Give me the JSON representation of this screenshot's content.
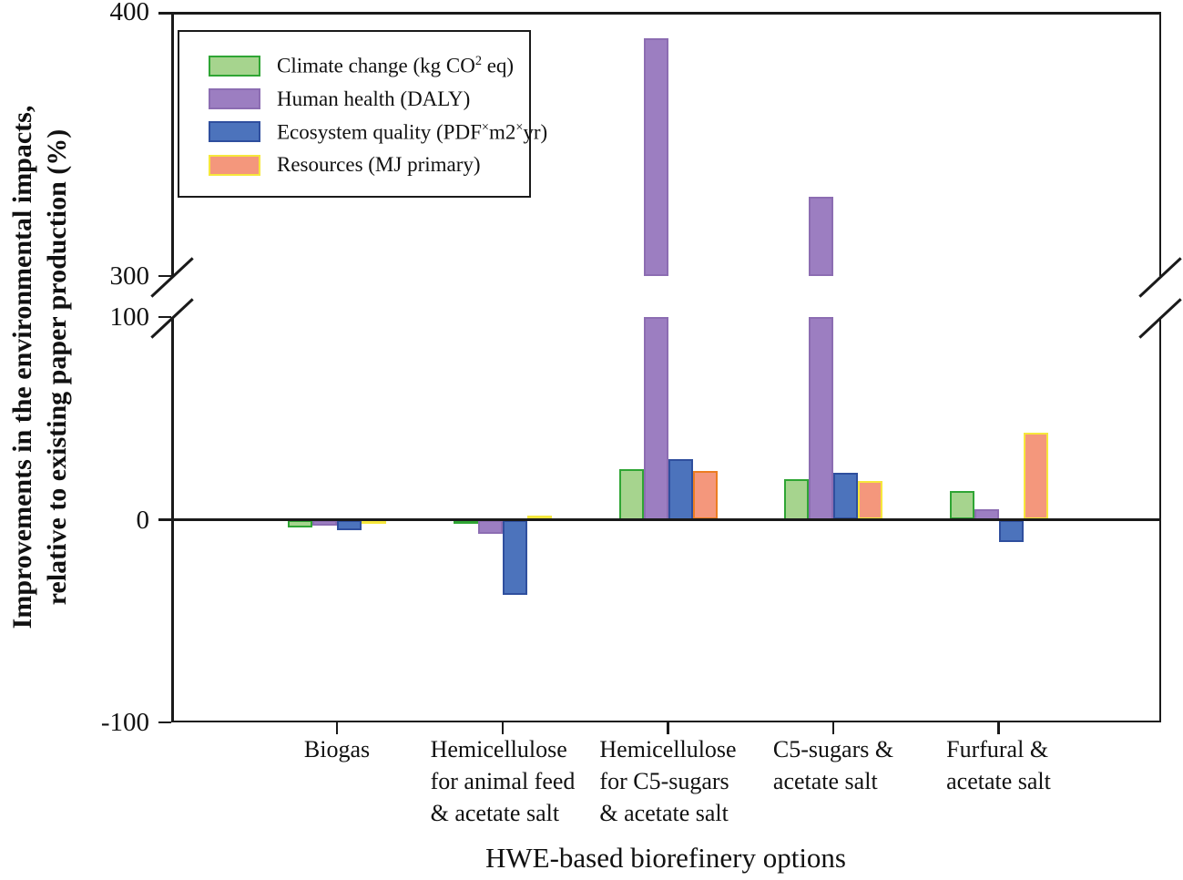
{
  "figure": {
    "y_axis_title_line1": "Improvements in the environmental impacts,",
    "y_axis_title_line2": "relative to existing paper production (%)",
    "x_axis_title": "HWE-based biorefinery options"
  },
  "legend": {
    "items": [
      {
        "key": "climate-change",
        "parts": [
          {
            "t": "Climate change (kg CO"
          },
          {
            "t": "2",
            "sup": true
          },
          {
            "t": " eq)"
          }
        ]
      },
      {
        "key": "human-health",
        "parts": [
          {
            "t": "Human health (DALY)"
          }
        ]
      },
      {
        "key": "ecosystem-quality",
        "parts": [
          {
            "t": "Ecosystem quality (PDF"
          },
          {
            "t": "×",
            "sup": true
          },
          {
            "t": "m2"
          },
          {
            "t": "×",
            "sup": true
          },
          {
            "t": "yr)"
          }
        ]
      },
      {
        "key": "resources",
        "parts": [
          {
            "t": "Resources (MJ primary)"
          }
        ]
      }
    ]
  },
  "chart_data": {
    "type": "bar",
    "title": "",
    "xlabel": "HWE-based biorefinery options",
    "ylabel": "Improvements in the environmental impacts, relative to existing paper production (%)",
    "categories": [
      "Biogas",
      "Hemicellulose for animal feed & acetate salt",
      "Hemicellulose for C5-sugars & acetate salt",
      "C5-sugars & acetate salt",
      "Furfural & acetate salt"
    ],
    "category_label_lines": [
      [
        "Biogas"
      ],
      [
        "Hemicellulose",
        "for animal feed",
        "& acetate salt"
      ],
      [
        "Hemicellulose",
        "for C5-sugars",
        "& acetate salt"
      ],
      [
        "C5-sugars &",
        "acetate salt"
      ],
      [
        "Furfural &",
        "acetate salt"
      ]
    ],
    "series": [
      {
        "name": "Climate change (kg CO2 eq)",
        "values": [
          -4,
          -2,
          25,
          20,
          14
        ],
        "fill": "#A6D48E",
        "border": "#2FA534"
      },
      {
        "name": "Human health (DALY)",
        "values": [
          -3,
          -7,
          390,
          330,
          5
        ],
        "fill": "#9C7EC1",
        "border": "#8C6DB2"
      },
      {
        "name": "Ecosystem quality (PDF×m2×yr)",
        "values": [
          -5,
          -37,
          30,
          23,
          -11
        ],
        "fill": "#4C73BC",
        "border": "#2F4F9E"
      },
      {
        "name": "Resources (MJ primary)",
        "values": [
          -2,
          2,
          24,
          19,
          43
        ],
        "fill": "#F4977C",
        "border": "#F6E73C",
        "border_overrides": {
          "2": "#EC7D21"
        }
      }
    ],
    "y_axis": {
      "ticks": [
        400,
        300,
        100,
        0,
        -100
      ],
      "lower_range": [
        -100,
        100
      ],
      "upper_range": [
        300,
        400
      ],
      "break_between": [
        100,
        300
      ]
    },
    "legend_position": "top-left",
    "grid": false
  }
}
